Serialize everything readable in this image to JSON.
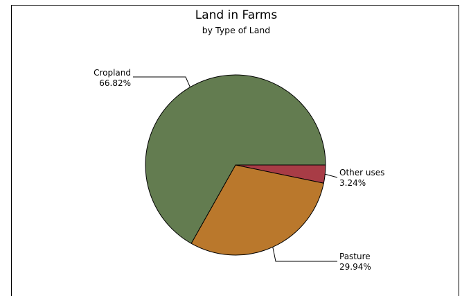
{
  "chart_data": {
    "type": "pie",
    "title": "Land in Farms",
    "subtitle": "by Type of Land",
    "slices": [
      {
        "name": "Other uses",
        "value": 3.24,
        "label": "3.24%",
        "color": "#a83c46"
      },
      {
        "name": "Pasture",
        "value": 29.94,
        "label": "29.94%",
        "color": "#ba782c"
      },
      {
        "name": "Cropland",
        "value": 66.82,
        "label": "66.82%",
        "color": "#637c50"
      }
    ],
    "legend": "none"
  }
}
